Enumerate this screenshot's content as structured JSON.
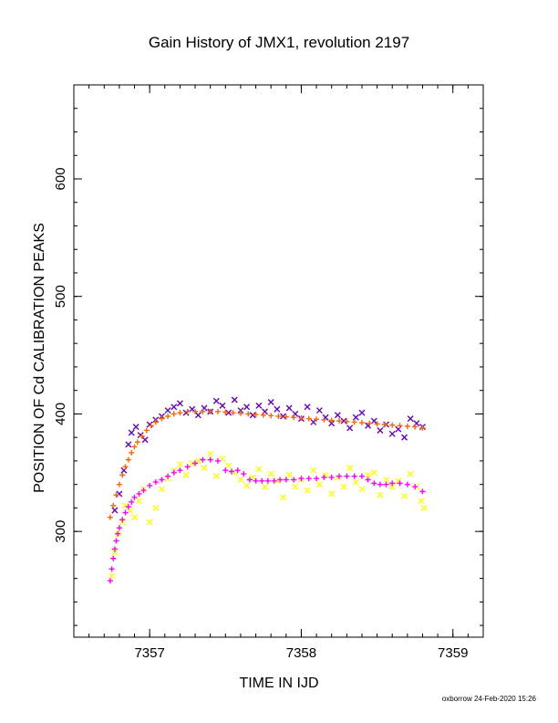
{
  "chart_data": {
    "type": "scatter",
    "title": "Gain History of JMX1, revolution 2197",
    "xlabel": "TIME IN IJD",
    "ylabel": "POSITION OF Cd CALIBRATION PEAKS",
    "xlim": [
      7356.5,
      7359.2
    ],
    "ylim": [
      210,
      680
    ],
    "x_ticks": [
      7357,
      7358,
      7359
    ],
    "x_tick_labels": [
      "7357",
      "7358",
      "7359"
    ],
    "y_ticks": [
      300,
      400,
      500,
      600
    ],
    "y_tick_labels": [
      "300",
      "400",
      "500",
      "600"
    ],
    "x_minor_step": 0.1,
    "y_minor_step": 20,
    "grid": false,
    "legend": "none",
    "footer": "oxborrow 24-Feb-2020 15:26",
    "series": [
      {
        "marker": "x",
        "color": "#6600cc",
        "x": [
          7356.77,
          7356.8,
          7356.83,
          7356.86,
          7356.88,
          7356.91,
          7356.94,
          7356.97,
          7357.0,
          7357.04,
          7357.08,
          7357.12,
          7357.16,
          7357.2,
          7357.24,
          7357.28,
          7357.32,
          7357.36,
          7357.4,
          7357.44,
          7357.48,
          7357.52,
          7357.56,
          7357.6,
          7357.64,
          7357.68,
          7357.72,
          7357.76,
          7357.8,
          7357.84,
          7357.88,
          7357.92,
          7357.96,
          7358.0,
          7358.04,
          7358.08,
          7358.12,
          7358.16,
          7358.2,
          7358.24,
          7358.28,
          7358.32,
          7358.36,
          7358.4,
          7358.44,
          7358.48,
          7358.52,
          7358.56,
          7358.6,
          7358.64,
          7358.68,
          7358.72,
          7358.76,
          7358.8
        ],
        "y": [
          318,
          332,
          352,
          374,
          384,
          389,
          382,
          378,
          391,
          395,
          398,
          403,
          406,
          409,
          401,
          404,
          399,
          405,
          402,
          411,
          407,
          401,
          412,
          403,
          406,
          399,
          407,
          402,
          410,
          404,
          398,
          405,
          400,
          396,
          406,
          393,
          403,
          397,
          392,
          399,
          394,
          388,
          397,
          401,
          390,
          394,
          386,
          391,
          383,
          387,
          380,
          396,
          392,
          389
        ]
      },
      {
        "marker": "x",
        "color": "#ffff00",
        "x": [
          7356.75,
          7356.77,
          7356.79,
          7356.82,
          7356.84,
          7356.87,
          7356.9,
          7356.93,
          7356.96,
          7357.0,
          7357.04,
          7357.08,
          7357.12,
          7357.16,
          7357.2,
          7357.24,
          7357.28,
          7357.32,
          7357.36,
          7357.4,
          7357.44,
          7357.48,
          7357.52,
          7357.56,
          7357.6,
          7357.64,
          7357.68,
          7357.72,
          7357.76,
          7357.8,
          7357.84,
          7357.88,
          7357.92,
          7357.96,
          7358.0,
          7358.04,
          7358.08,
          7358.12,
          7358.16,
          7358.2,
          7358.24,
          7358.28,
          7358.32,
          7358.36,
          7358.4,
          7358.44,
          7358.48,
          7358.52,
          7358.56,
          7358.6,
          7358.64,
          7358.68,
          7358.72,
          7358.76,
          7358.79,
          7358.81
        ],
        "y": [
          262,
          282,
          298,
          308,
          322,
          318,
          312,
          326,
          336,
          308,
          320,
          336,
          345,
          352,
          357,
          348,
          358,
          360,
          354,
          366,
          347,
          362,
          356,
          350,
          344,
          339,
          346,
          353,
          338,
          349,
          343,
          329,
          348,
          338,
          344,
          335,
          352,
          340,
          348,
          332,
          346,
          338,
          354,
          342,
          336,
          348,
          350,
          331,
          344,
          338,
          343,
          330,
          349,
          338,
          326,
          320
        ]
      },
      {
        "marker": "+",
        "color": "#ff6600",
        "x": [
          7356.74,
          7356.76,
          7356.78,
          7356.8,
          7356.82,
          7356.84,
          7356.86,
          7356.88,
          7356.9,
          7356.92,
          7356.95,
          7356.98,
          7357.01,
          7357.04,
          7357.08,
          7357.12,
          7357.16,
          7357.2,
          7357.25,
          7357.3,
          7357.35,
          7357.4,
          7357.45,
          7357.5,
          7357.55,
          7357.6,
          7357.65,
          7357.7,
          7357.75,
          7357.8,
          7357.85,
          7357.9,
          7357.95,
          7358.0,
          7358.05,
          7358.1,
          7358.15,
          7358.2,
          7358.25,
          7358.3,
          7358.35,
          7358.4,
          7358.45,
          7358.5,
          7358.55,
          7358.6,
          7358.65,
          7358.7,
          7358.75,
          7358.8
        ],
        "y": [
          312,
          322,
          331,
          340,
          348,
          355,
          361,
          367,
          372,
          376,
          381,
          386,
          390,
          393,
          396,
          398,
          400,
          401,
          402,
          402,
          402,
          402,
          402,
          401.5,
          401,
          400.5,
          400,
          399.5,
          399,
          398.5,
          398,
          397.5,
          397,
          396.5,
          396,
          395.5,
          395,
          394.5,
          394,
          393.5,
          393,
          392.5,
          392,
          391.5,
          391,
          390.5,
          390,
          389.5,
          389,
          388
        ]
      },
      {
        "marker": "+",
        "color": "#ff00ff",
        "x": [
          7356.74,
          7356.75,
          7356.76,
          7356.77,
          7356.78,
          7356.79,
          7356.8,
          7356.82,
          7356.84,
          7356.86,
          7356.88,
          7356.9,
          7356.93,
          7356.96,
          7357.0,
          7357.04,
          7357.08,
          7357.12,
          7357.16,
          7357.2,
          7357.25,
          7357.3,
          7357.35,
          7357.4,
          7357.45,
          7357.5,
          7357.54,
          7357.58,
          7357.62,
          7357.66,
          7357.7,
          7357.74,
          7357.78,
          7357.82,
          7357.86,
          7357.9,
          7357.95,
          7358.0,
          7358.05,
          7358.1,
          7358.15,
          7358.2,
          7358.25,
          7358.3,
          7358.35,
          7358.4,
          7358.44,
          7358.48,
          7358.52,
          7358.56,
          7358.6,
          7358.65,
          7358.7,
          7358.75,
          7358.8
        ],
        "y": [
          258,
          268,
          277,
          285,
          292,
          298,
          303,
          310,
          316,
          321,
          325,
          329,
          332,
          335,
          339,
          342,
          344,
          347,
          350,
          352,
          355,
          358,
          361,
          361,
          360,
          352,
          351,
          352,
          349,
          344,
          343,
          343,
          343,
          343,
          344,
          344,
          344,
          345,
          345,
          345,
          346,
          346,
          347,
          347,
          347,
          347,
          344,
          341,
          340,
          340,
          341,
          341,
          340,
          338,
          334
        ]
      }
    ]
  }
}
